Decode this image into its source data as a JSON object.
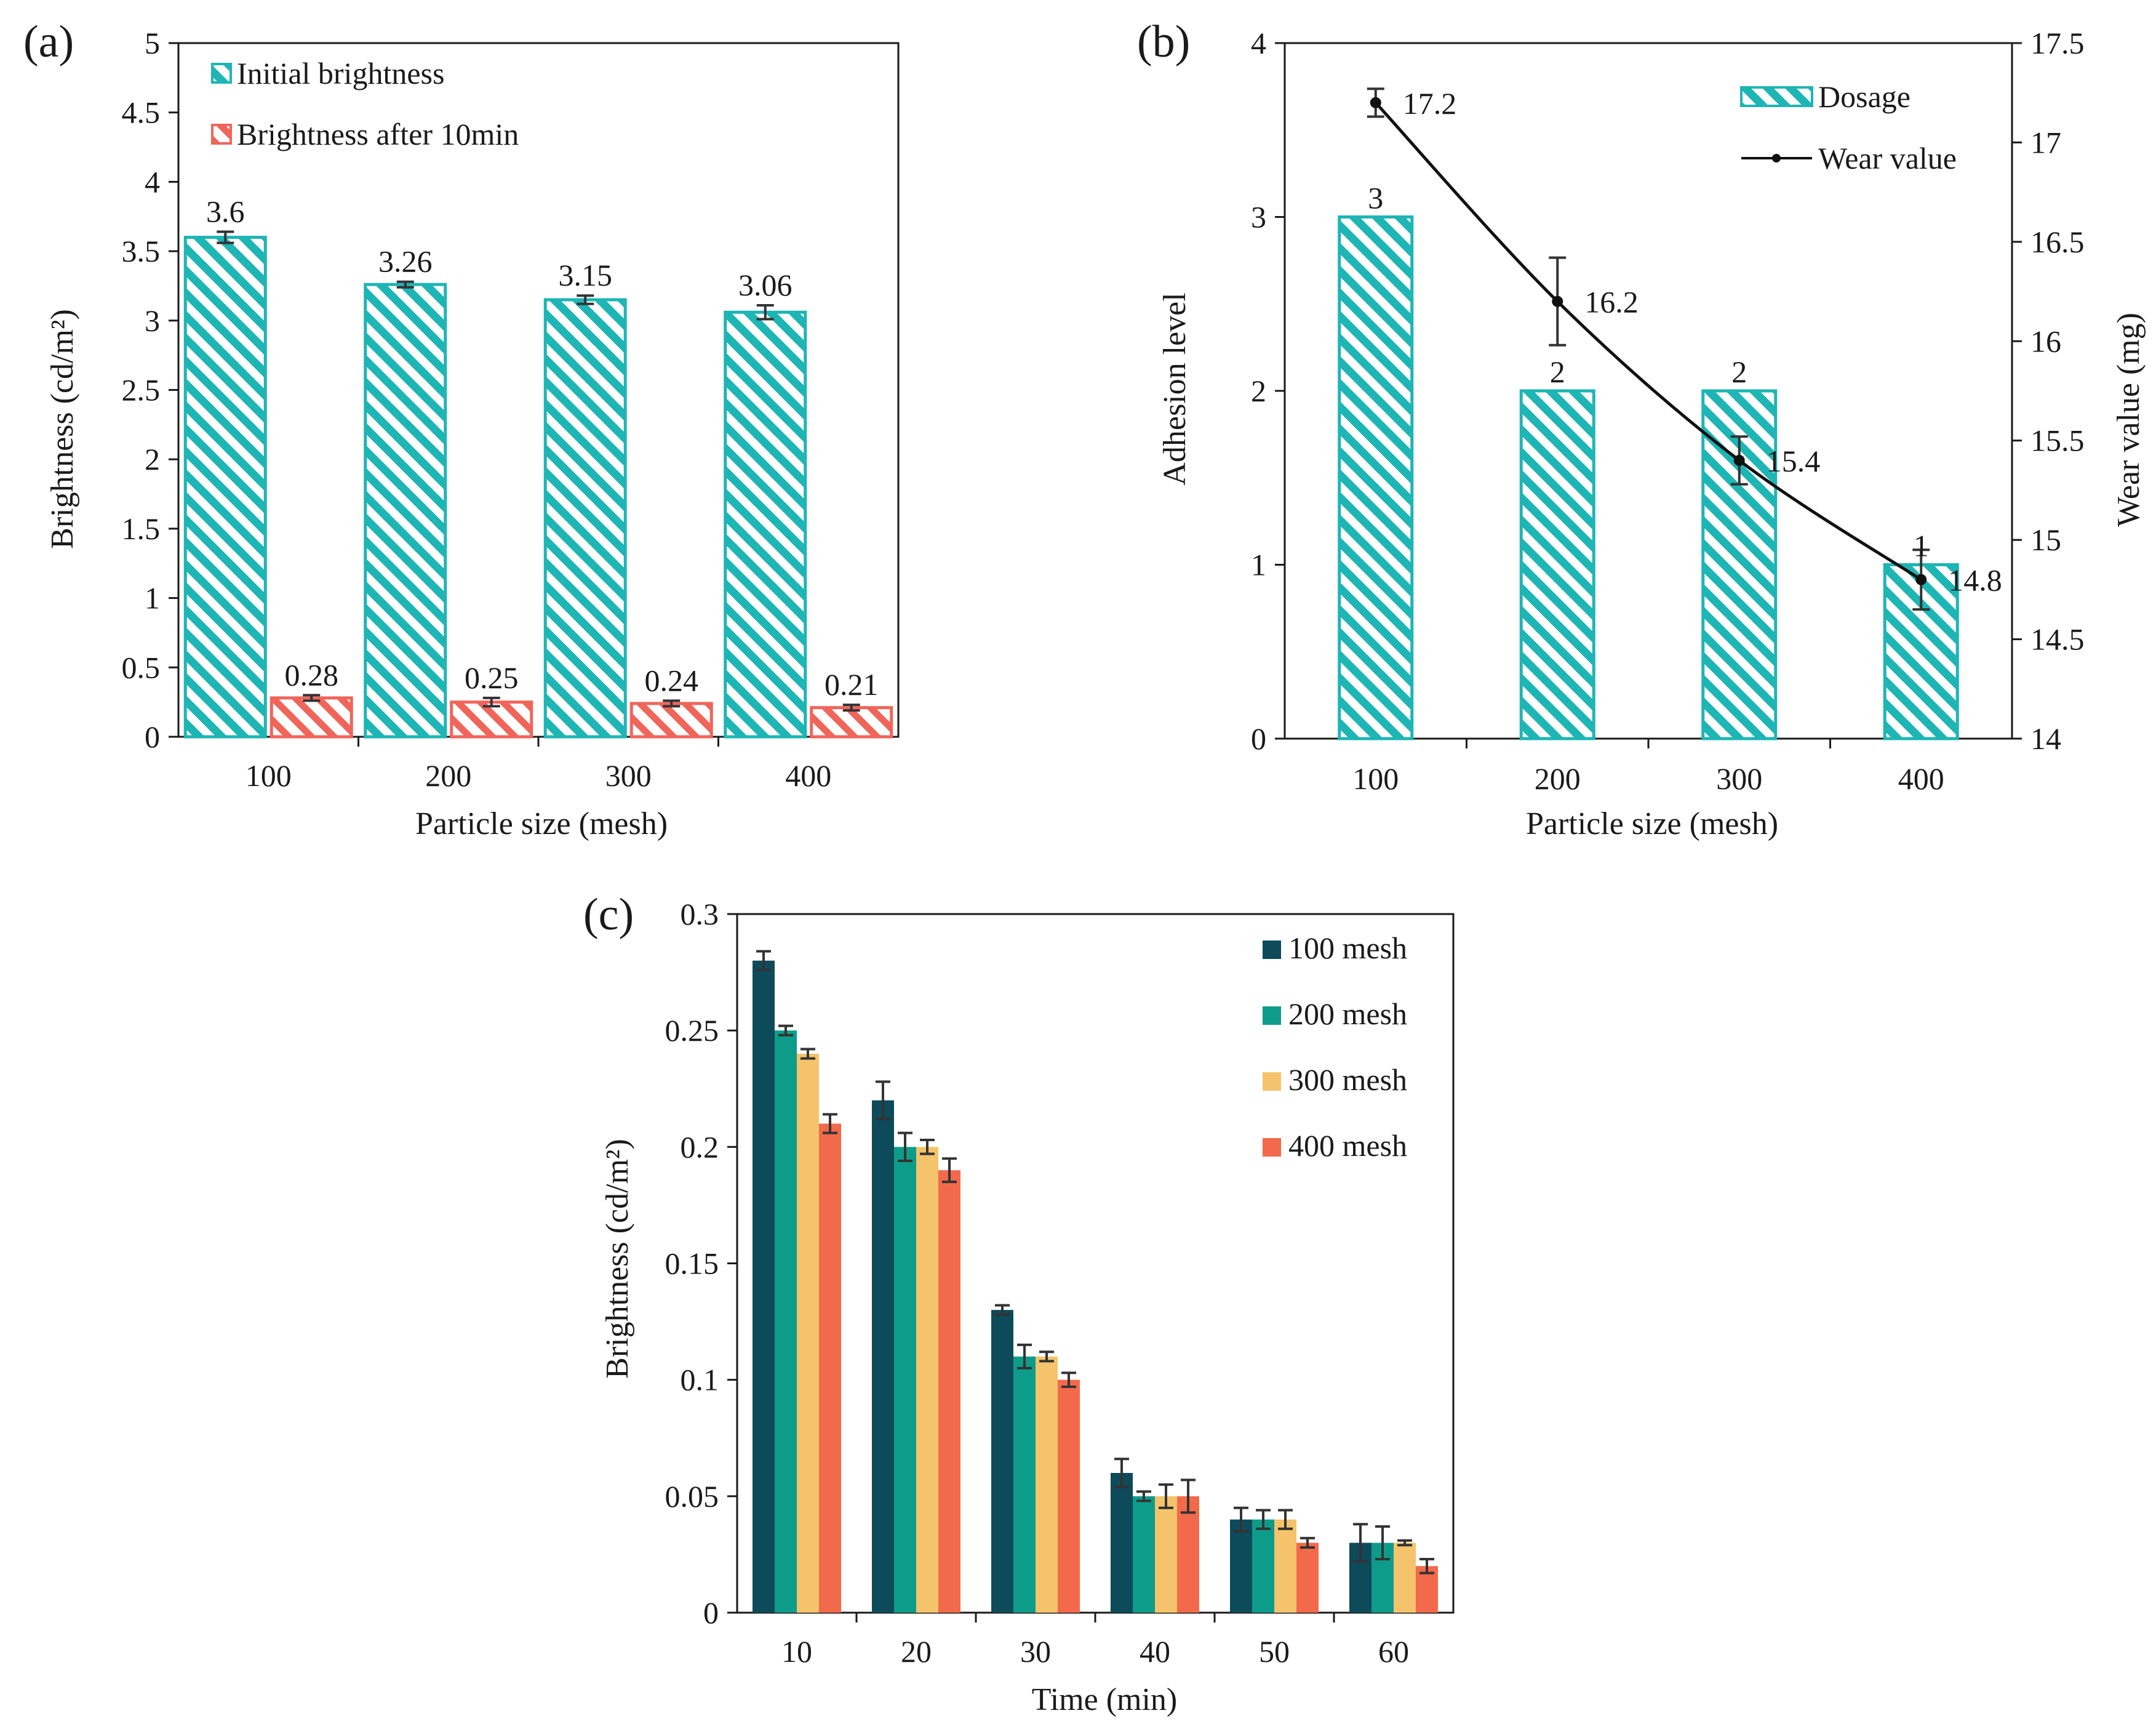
{
  "panels": {
    "a": "(a)",
    "b": "(b)",
    "c": "(c)"
  },
  "colors": {
    "teal": "#1EB5B5",
    "red": "#F0655A",
    "line": "#111111",
    "c_series": [
      "#0D4A5A",
      "#0E9C8A",
      "#F5C36B",
      "#F26A4B"
    ]
  },
  "chart_data": [
    {
      "type": "bar",
      "panel": "(a)",
      "title": "",
      "xlabel": "Particle size (mesh)",
      "ylabel": "Brightness (cd/m²)",
      "ylim": [
        0,
        5
      ],
      "yticks": [
        "0",
        "0.5",
        "1",
        "1.5",
        "2",
        "2.5",
        "3",
        "3.5",
        "4",
        "4.5",
        "5"
      ],
      "categories": [
        "100",
        "200",
        "300",
        "400"
      ],
      "legend_position": "top-left",
      "series": [
        {
          "name": "Initial brightness",
          "values": [
            3.6,
            3.26,
            3.15,
            3.06
          ],
          "errors": [
            0.04,
            0.02,
            0.03,
            0.05
          ],
          "labels": [
            "3.6",
            "3.26",
            "3.15",
            "3.06"
          ],
          "pattern": "hatch",
          "color": "#1EB5B5"
        },
        {
          "name": "Brightness after 10min",
          "values": [
            0.28,
            0.25,
            0.24,
            0.21
          ],
          "errors": [
            0.02,
            0.03,
            0.02,
            0.02
          ],
          "labels": [
            "0.28",
            "0.25",
            "0.24",
            "0.21"
          ],
          "pattern": "hatch",
          "color": "#F0655A"
        }
      ]
    },
    {
      "type": "bar",
      "panel": "(b)",
      "title": "",
      "xlabel": "Particle size (mesh)",
      "ylabel": "Adhesion level",
      "y2label": "Wear value (mg)",
      "ylim": [
        0,
        4
      ],
      "y2lim": [
        14,
        17.5
      ],
      "yticks": [
        "0",
        "1",
        "2",
        "3",
        "4"
      ],
      "y2ticks": [
        "14",
        "14.5",
        "15",
        "15.5",
        "16",
        "16.5",
        "17",
        "17.5"
      ],
      "categories": [
        "100",
        "200",
        "300",
        "400"
      ],
      "legend_position": "top-right",
      "bars": {
        "name": "Dosage",
        "values": [
          3,
          2,
          2,
          1
        ],
        "labels": [
          "3",
          "2",
          "2",
          "1"
        ],
        "color": "#1EB5B5"
      },
      "line": {
        "name": "Wear value",
        "values": [
          17.2,
          16.2,
          15.4,
          14.8
        ],
        "errors": [
          0.07,
          0.22,
          0.12,
          0.15
        ],
        "labels": [
          "17.2",
          "16.2",
          "15.4",
          "14.8"
        ],
        "axis": "right"
      }
    },
    {
      "type": "bar",
      "panel": "(c)",
      "title": "",
      "xlabel": "Time (min)",
      "ylabel": "Brightness (cd/m²)",
      "ylim": [
        0,
        0.3
      ],
      "yticks": [
        "0",
        "0.05",
        "0.1",
        "0.15",
        "0.2",
        "0.25",
        "0.3"
      ],
      "categories": [
        "10",
        "20",
        "30",
        "40",
        "50",
        "60"
      ],
      "legend_position": "top-right",
      "series": [
        {
          "name": "100 mesh",
          "values": [
            0.28,
            0.22,
            0.13,
            0.06,
            0.04,
            0.03
          ],
          "errors": [
            0.004,
            0.008,
            0.002,
            0.006,
            0.005,
            0.008
          ]
        },
        {
          "name": "200 mesh",
          "values": [
            0.25,
            0.2,
            0.11,
            0.05,
            0.04,
            0.03
          ],
          "errors": [
            0.002,
            0.006,
            0.005,
            0.002,
            0.004,
            0.007
          ]
        },
        {
          "name": "300 mesh",
          "values": [
            0.24,
            0.2,
            0.11,
            0.05,
            0.04,
            0.03
          ],
          "errors": [
            0.002,
            0.003,
            0.002,
            0.005,
            0.004,
            0.001
          ]
        },
        {
          "name": "400 mesh",
          "values": [
            0.21,
            0.19,
            0.1,
            0.05,
            0.03,
            0.02
          ],
          "errors": [
            0.004,
            0.005,
            0.003,
            0.007,
            0.002,
            0.003
          ]
        }
      ]
    }
  ]
}
